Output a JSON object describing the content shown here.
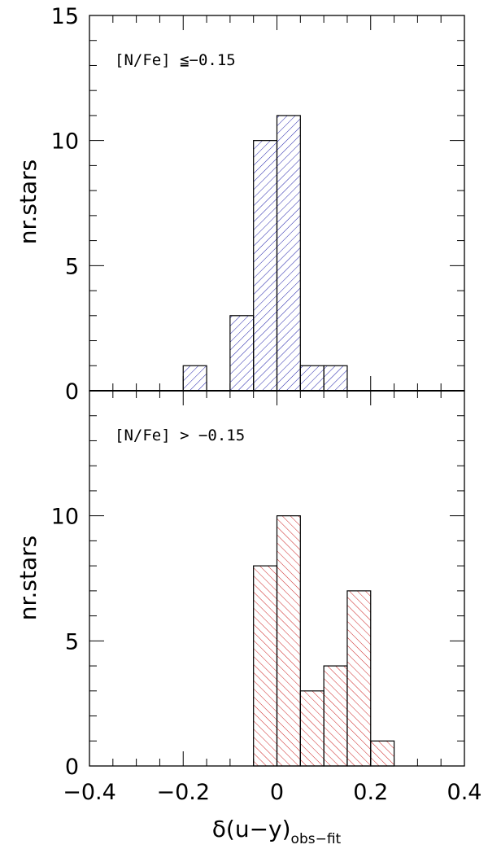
{
  "chart_data": [
    {
      "type": "bar",
      "panel": "top",
      "annotation": "[N/Fe] ≦−0.15",
      "ylabel": "nr.stars",
      "ylim": [
        0,
        15
      ],
      "yticks": [
        "0",
        "5",
        "10",
        "15"
      ],
      "xlim": [
        -0.4,
        0.4
      ],
      "bin_width": 0.05,
      "bins": [
        {
          "x0": -0.2,
          "x1": -0.15,
          "value": 1
        },
        {
          "x0": -0.1,
          "x1": -0.05,
          "value": 3
        },
        {
          "x0": -0.05,
          "x1": 0.0,
          "value": 10
        },
        {
          "x0": 0.0,
          "x1": 0.05,
          "value": 11
        },
        {
          "x0": 0.05,
          "x1": 0.1,
          "value": 1
        },
        {
          "x0": 0.1,
          "x1": 0.15,
          "value": 1
        }
      ],
      "hatch": "diagonal-down",
      "color": "#2222aa"
    },
    {
      "type": "bar",
      "panel": "bottom",
      "annotation": "[N/Fe] > −0.15",
      "ylabel": "nr.stars",
      "ylim": [
        0,
        15
      ],
      "yticks": [
        "0",
        "5",
        "10"
      ],
      "xlim": [
        -0.4,
        0.4
      ],
      "bin_width": 0.05,
      "bins": [
        {
          "x0": -0.05,
          "x1": 0.0,
          "value": 8
        },
        {
          "x0": 0.0,
          "x1": 0.05,
          "value": 10
        },
        {
          "x0": 0.05,
          "x1": 0.1,
          "value": 3
        },
        {
          "x0": 0.1,
          "x1": 0.15,
          "value": 4
        },
        {
          "x0": 0.15,
          "x1": 0.2,
          "value": 7
        },
        {
          "x0": 0.2,
          "x1": 0.25,
          "value": 1
        }
      ],
      "hatch": "diagonal-up",
      "color": "#cc2222",
      "xlabel_main": "δ(u−y)",
      "xlabel_sub": "obs−fit",
      "xticks": [
        "−0.4",
        "−0.2",
        "0",
        "0.2",
        "0.4"
      ]
    }
  ]
}
